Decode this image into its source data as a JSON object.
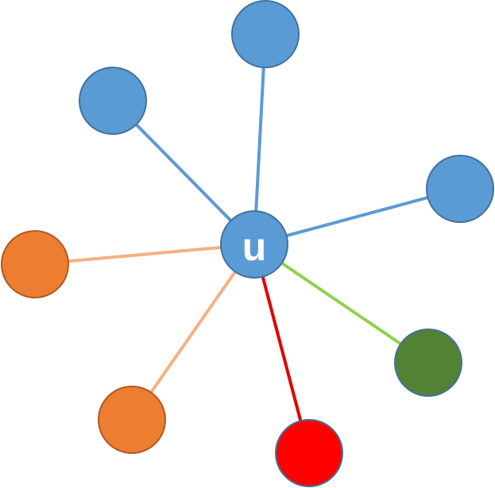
{
  "center": {
    "label": "u",
    "fill": "#5b9bd5",
    "stroke": "#41719c",
    "label_color": "#ffffff"
  },
  "neighbors": [
    {
      "id": "top",
      "fill": "#5b9bd5",
      "stroke": "#41719c",
      "edge_color": "#5b9bd5"
    },
    {
      "id": "upper-left",
      "fill": "#5b9bd5",
      "stroke": "#41719c",
      "edge_color": "#5b9bd5"
    },
    {
      "id": "right",
      "fill": "#5b9bd5",
      "stroke": "#41719c",
      "edge_color": "#5b9bd5"
    },
    {
      "id": "left",
      "fill": "#ed7d31",
      "stroke": "#ae5a21",
      "edge_color": "#f4b183"
    },
    {
      "id": "lower-left",
      "fill": "#ed7d31",
      "stroke": "#ae5a21",
      "edge_color": "#f4b183"
    },
    {
      "id": "bottom",
      "fill": "#ff0000",
      "stroke": "#41719c",
      "edge_color": "#e00000"
    },
    {
      "id": "lower-right",
      "fill": "#548235",
      "stroke": "#41719c",
      "edge_color": "#92d050"
    }
  ]
}
